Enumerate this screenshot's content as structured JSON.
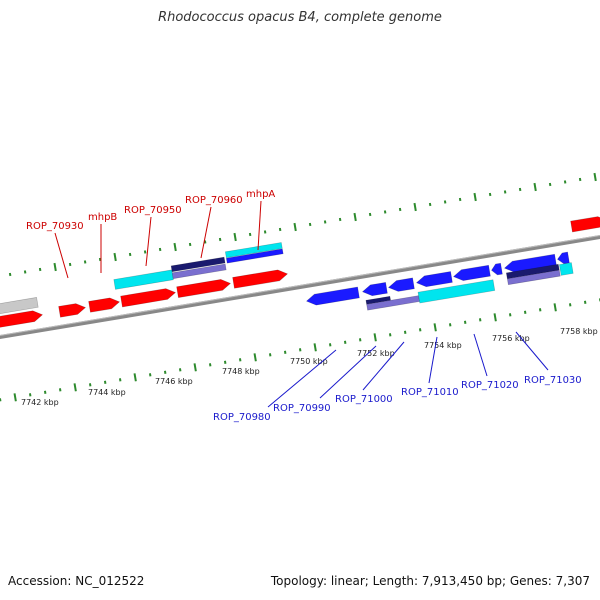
{
  "title": "Rhodococcus opacus B4, complete genome",
  "footer": {
    "accession": "Accession: NC_012522",
    "topology": "Topology: linear; Length: 7,913,450 bp; Genes: 7,307"
  },
  "colors": {
    "backbone": "#888888",
    "tick": "#2e8b2e",
    "forward_gene": "#ff0000",
    "reverse_gene": "#1a1aff",
    "forward_label": "#cc0000",
    "reverse_label": "#1a1acc",
    "cyan_feature": "#00e5ee",
    "dark_feature": "#1a1a6e",
    "lavender_feature": "#7a6fcf",
    "grey_feature": "#c8c8c8"
  },
  "axis": {
    "kbp_labels": [
      "7742 kbp",
      "7744 kbp",
      "7746 kbp",
      "7748 kbp",
      "7750 kbp",
      "7752 kbp",
      "7754 kbp",
      "7756 kbp",
      "7758 kbp"
    ]
  },
  "forward_gene_labels": [
    "ROP_70930",
    "mhpB",
    "ROP_70950",
    "ROP_70960",
    "mhpA"
  ],
  "reverse_gene_labels": [
    "ROP_70980",
    "ROP_70990",
    "ROP_71000",
    "ROP_71010",
    "ROP_71020",
    "ROP_71030"
  ]
}
